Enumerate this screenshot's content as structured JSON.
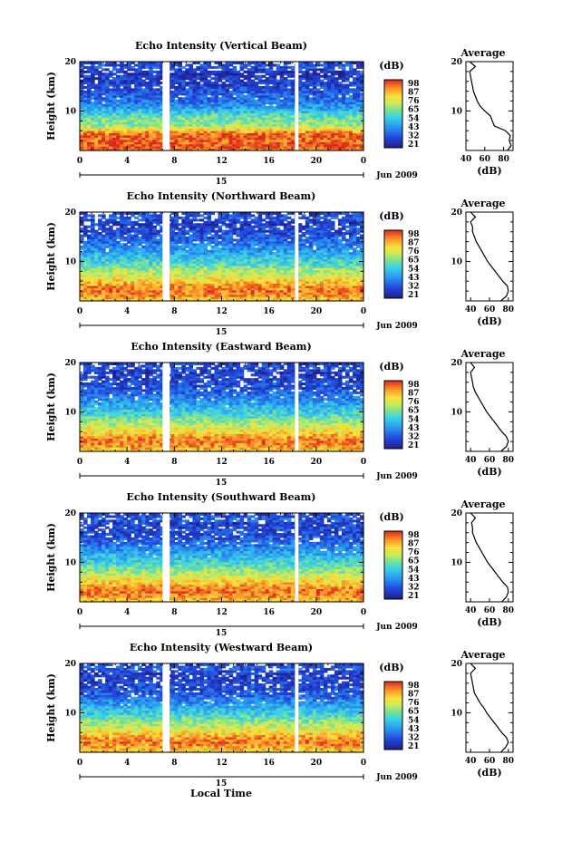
{
  "figure": {
    "x_axis_label": "Local Time",
    "y_axis_label": "Height (km)",
    "colorbar_title": "(dB)",
    "profile_title": "Average",
    "profile_xlabel": "(dB)",
    "date_label": "Jun 2009",
    "day_label": "15",
    "time_ticks": [
      "0",
      "4",
      "8",
      "12",
      "16",
      "20",
      "0"
    ],
    "height_ticks": [
      "20",
      "10"
    ]
  },
  "chart_data": [
    {
      "type": "heatmap",
      "title": "Echo Intensity (Vertical Beam)",
      "xlabel": "Local Time",
      "ylabel": "Height (km)",
      "xlim": [
        0,
        24
      ],
      "ylim": [
        2,
        20
      ],
      "colorbar_ticks": [
        "98",
        "87",
        "76",
        "65",
        "54",
        "43",
        "32",
        "21"
      ],
      "colorbar_range": [
        21,
        98
      ],
      "data_gaps_hours": [
        [
          7.0,
          7.6
        ],
        [
          18.2,
          18.5
        ]
      ],
      "profile": {
        "xlim": [
          40,
          90
        ],
        "xticks": [
          "40",
          "60",
          "80"
        ],
        "heights_km": [
          2,
          3,
          4,
          5,
          6,
          7,
          8,
          9,
          10,
          11,
          12,
          13,
          14,
          15,
          16,
          17,
          18,
          19,
          20
        ],
        "values_db": [
          84,
          88,
          86,
          87,
          82,
          70,
          68,
          66,
          60,
          55,
          52,
          50,
          48,
          47,
          46,
          45,
          44,
          50,
          44
        ]
      }
    },
    {
      "type": "heatmap",
      "title": "Echo Intensity (Northward Beam)",
      "xlabel": "Local Time",
      "ylabel": "Height (km)",
      "xlim": [
        0,
        24
      ],
      "ylim": [
        2,
        20
      ],
      "colorbar_ticks": [
        "98",
        "87",
        "76",
        "65",
        "54",
        "43",
        "32",
        "21"
      ],
      "colorbar_range": [
        21,
        98
      ],
      "data_gaps_hours": [
        [
          7.0,
          7.6
        ],
        [
          18.2,
          18.5
        ]
      ],
      "profile": {
        "xlim": [
          35,
          85
        ],
        "xticks": [
          "40",
          "60",
          "80"
        ],
        "heights_km": [
          2,
          3,
          4,
          5,
          6,
          7,
          8,
          9,
          10,
          11,
          12,
          13,
          14,
          15,
          16,
          17,
          18,
          19,
          20
        ],
        "values_db": [
          72,
          78,
          80,
          79,
          74,
          70,
          66,
          62,
          58,
          55,
          52,
          49,
          46,
          44,
          42,
          42,
          40,
          45,
          40
        ]
      }
    },
    {
      "type": "heatmap",
      "title": "Echo Intensity (Eastward Beam)",
      "xlabel": "Local Time",
      "ylabel": "Height (km)",
      "xlim": [
        0,
        24
      ],
      "ylim": [
        2,
        20
      ],
      "colorbar_ticks": [
        "98",
        "87",
        "76",
        "65",
        "54",
        "43",
        "32",
        "21"
      ],
      "colorbar_range": [
        21,
        98
      ],
      "data_gaps_hours": [
        [
          7.0,
          7.6
        ],
        [
          18.2,
          18.5
        ]
      ],
      "profile": {
        "xlim": [
          35,
          85
        ],
        "xticks": [
          "40",
          "60",
          "80"
        ],
        "heights_km": [
          2,
          3,
          4,
          5,
          6,
          7,
          8,
          9,
          10,
          11,
          12,
          13,
          14,
          15,
          16,
          17,
          18,
          19,
          20
        ],
        "values_db": [
          72,
          78,
          80,
          78,
          73,
          69,
          65,
          61,
          57,
          54,
          51,
          48,
          45,
          43,
          42,
          41,
          40,
          44,
          40
        ]
      }
    },
    {
      "type": "heatmap",
      "title": "Echo Intensity (Southward Beam)",
      "xlabel": "Local Time",
      "ylabel": "Height (km)",
      "xlim": [
        0,
        24
      ],
      "ylim": [
        2,
        20
      ],
      "colorbar_ticks": [
        "98",
        "87",
        "76",
        "65",
        "54",
        "43",
        "32",
        "21"
      ],
      "colorbar_range": [
        21,
        98
      ],
      "data_gaps_hours": [
        [
          7.0,
          7.6
        ],
        [
          18.2,
          18.5
        ]
      ],
      "profile": {
        "xlim": [
          35,
          85
        ],
        "xticks": [
          "40",
          "60",
          "80"
        ],
        "heights_km": [
          2,
          3,
          4,
          5,
          6,
          7,
          8,
          9,
          10,
          11,
          12,
          13,
          14,
          15,
          16,
          17,
          18,
          19,
          20
        ],
        "values_db": [
          73,
          78,
          80,
          79,
          74,
          70,
          66,
          62,
          58,
          55,
          52,
          49,
          46,
          44,
          42,
          42,
          41,
          45,
          40
        ]
      }
    },
    {
      "type": "heatmap",
      "title": "Echo Intensity (Westward Beam)",
      "xlabel": "Local Time",
      "ylabel": "Height (km)",
      "xlim": [
        0,
        24
      ],
      "ylim": [
        2,
        20
      ],
      "colorbar_ticks": [
        "98",
        "87",
        "76",
        "65",
        "54",
        "43",
        "32",
        "21"
      ],
      "colorbar_range": [
        21,
        98
      ],
      "data_gaps_hours": [
        [
          7.0,
          7.6
        ],
        [
          18.2,
          18.5
        ]
      ],
      "profile": {
        "xlim": [
          35,
          85
        ],
        "xticks": [
          "40",
          "60",
          "80"
        ],
        "heights_km": [
          2,
          3,
          4,
          5,
          6,
          7,
          8,
          9,
          10,
          11,
          12,
          13,
          14,
          15,
          16,
          17,
          18,
          19,
          20
        ],
        "values_db": [
          72,
          77,
          80,
          78,
          73,
          69,
          65,
          61,
          57,
          54,
          50,
          47,
          44,
          43,
          42,
          41,
          40,
          45,
          40
        ]
      }
    }
  ]
}
